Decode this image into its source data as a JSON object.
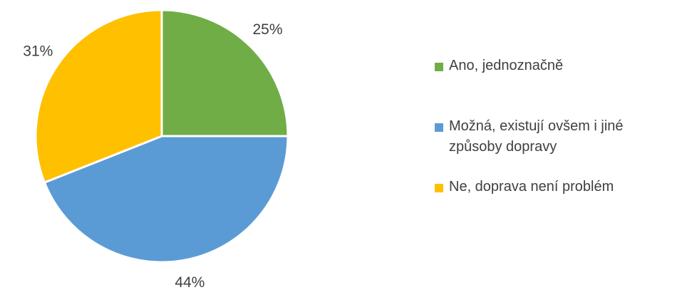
{
  "chart_data": {
    "type": "pie",
    "categories": [
      "Ano, jednoznačně",
      "Možná, existují ovšem i jiné způsoby dopravy",
      "Ne, doprava není problém"
    ],
    "values": [
      25,
      44,
      31
    ],
    "value_labels": [
      "25%",
      "44%",
      "31%"
    ],
    "colors": [
      "#70ad47",
      "#5b9bd5",
      "#ffc000"
    ],
    "legend": "right"
  }
}
